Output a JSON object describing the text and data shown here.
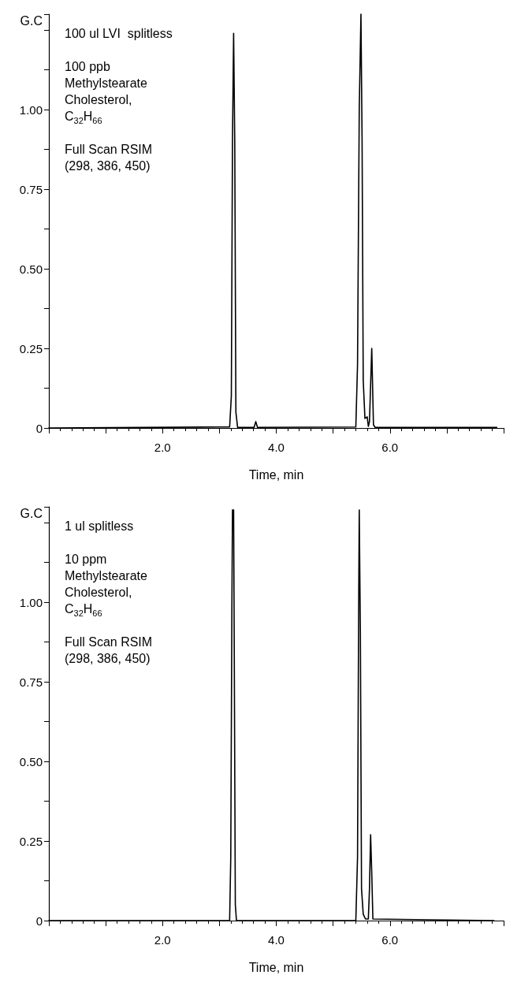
{
  "chart_data": [
    {
      "type": "line",
      "ylabel": "G.C",
      "xlabel": "Time, min",
      "annotations": [
        "100 ul LVI  splitless",
        "100 ppb\nMethylstearate\nCholesterol,\nC$_{32}$H$_{66}$",
        "Full Scan RSIM\n(298, 386, 450)"
      ],
      "series": [
        {
          "color": "#000000",
          "x": [
            0,
            3.0,
            3.18,
            3.21,
            3.23,
            3.25,
            3.27,
            3.29,
            3.32,
            3.61,
            3.64,
            3.67,
            5.4,
            5.43,
            5.46,
            5.49,
            5.51,
            5.53,
            5.56,
            5.6,
            5.62,
            5.64,
            5.68,
            5.71,
            5.74,
            7.88
          ],
          "values": [
            0,
            0.003,
            0.003,
            0.1,
            0.9,
            1.24,
            0.9,
            0.05,
            0.002,
            0.002,
            0.02,
            0.002,
            0.003,
            0.2,
            1.0,
            1.3,
            0.9,
            0.15,
            0.03,
            0.035,
            0.005,
            0.02,
            0.25,
            0.01,
            0.002,
            0.002
          ]
        }
      ],
      "xlim": [
        0,
        8
      ],
      "xticks": [
        {
          "value": 0,
          "label": null
        },
        {
          "value": 1,
          "label": null
        },
        {
          "value": 2,
          "label": "2.0"
        },
        {
          "value": 3,
          "label": null
        },
        {
          "value": 4,
          "label": "4.0"
        },
        {
          "value": 5,
          "label": null
        },
        {
          "value": 6,
          "label": "6.0"
        },
        {
          "value": 7,
          "label": null
        },
        {
          "value": 8,
          "label": null
        }
      ],
      "ylim": [
        0,
        1.3
      ],
      "yticks": [
        0,
        {
          "value": 0.125,
          "label": null
        },
        0.25,
        {
          "value": 0.375,
          "label": null
        },
        {
          "value": 0.5,
          "label": "0.50"
        },
        {
          "value": 0.625,
          "label": null
        },
        0.75,
        {
          "value": 0.875,
          "label": null
        },
        {
          "value": 1,
          "label": "1.00"
        },
        {
          "value": 1.125,
          "label": null
        },
        {
          "value": 1.25,
          "label": null
        }
      ],
      "grid": false,
      "marker": "none",
      "line_style": "solid"
    },
    {
      "type": "line",
      "ylabel": "G.C",
      "xlabel": "Time, min",
      "annotations": [
        "1 ul splitless",
        "10 ppm\nMethylstearate\nCholesterol,\nC$_{32}$H$_{66}$",
        "Full Scan RSIM\n(298, 386, 450)"
      ],
      "series": [
        {
          "color": "#000000",
          "x": [
            0,
            3.18,
            3.2,
            3.22,
            3.23,
            3.25,
            3.26,
            3.28,
            3.3,
            5.4,
            5.43,
            5.45,
            5.46,
            5.48,
            5.5,
            5.53,
            5.57,
            5.62,
            5.64,
            5.66,
            5.68,
            5.7,
            7.83
          ],
          "values": [
            0,
            0,
            0.2,
            1.0,
            1.29,
            1.29,
            0.9,
            0.05,
            0,
            0,
            0.2,
            1.0,
            1.29,
            0.9,
            0.1,
            0.02,
            0.005,
            0.005,
            0.1,
            0.27,
            0.15,
            0.005,
            0
          ]
        }
      ],
      "xlim": [
        0,
        8
      ],
      "xticks": [
        {
          "value": 0,
          "label": null
        },
        {
          "value": 1,
          "label": null
        },
        {
          "value": 2,
          "label": "2.0"
        },
        {
          "value": 3,
          "label": null
        },
        {
          "value": 4,
          "label": "4.0"
        },
        {
          "value": 5,
          "label": null
        },
        {
          "value": 6,
          "label": "6.0"
        },
        {
          "value": 7,
          "label": null
        },
        {
          "value": 8,
          "label": null
        }
      ],
      "ylim": [
        0,
        1.3
      ],
      "yticks": [
        0,
        {
          "value": 0.125,
          "label": null
        },
        0.25,
        {
          "value": 0.375,
          "label": null
        },
        {
          "value": 0.5,
          "label": "0.50"
        },
        {
          "value": 0.625,
          "label": null
        },
        0.75,
        {
          "value": 0.875,
          "label": null
        },
        {
          "value": 1,
          "label": "1.00"
        },
        {
          "value": 1.125,
          "label": null
        },
        {
          "value": 1.25,
          "label": null
        }
      ],
      "grid": false,
      "marker": "none",
      "line_style": "solid"
    }
  ]
}
